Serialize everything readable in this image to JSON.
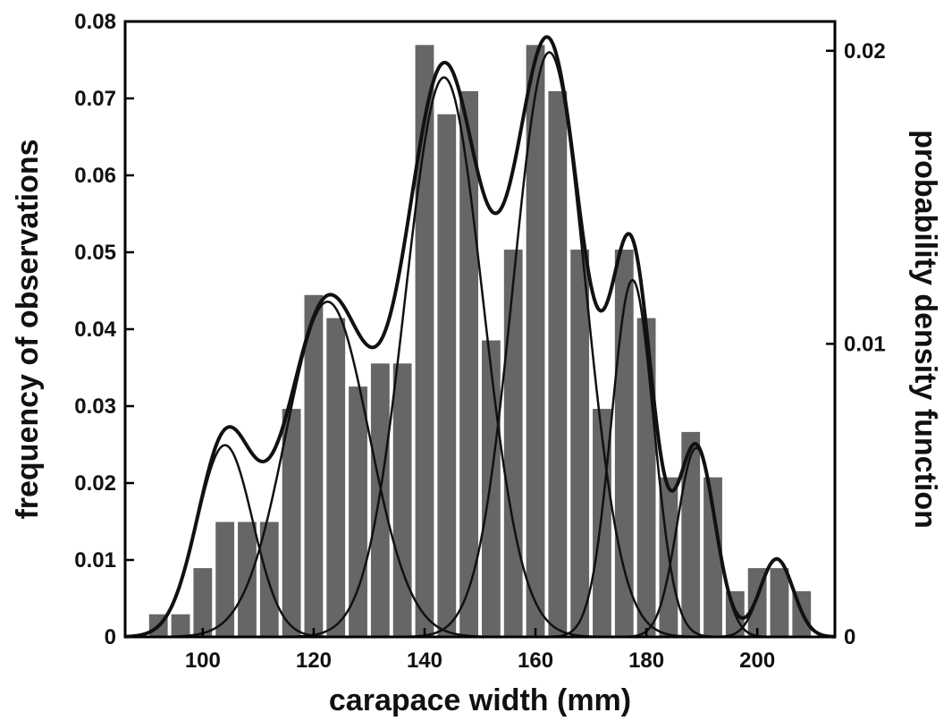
{
  "chart_data": {
    "type": "bar",
    "xlabel": "carapace width (mm)",
    "ylabel": "frequency of observations",
    "ylabel_right": "probability density function",
    "xlim": [
      86,
      214
    ],
    "ylim": [
      0,
      0.08
    ],
    "ylim_right": [
      0,
      0.021
    ],
    "x_ticks": [
      100,
      120,
      140,
      160,
      180,
      200
    ],
    "y_ticks": [
      0,
      0.01,
      0.02,
      0.03,
      0.04,
      0.05,
      0.06,
      0.07,
      0.08
    ],
    "y_tick_labels": [
      "0",
      "0.01",
      "0.02",
      "0.03",
      "0.04",
      "0.05",
      "0.06",
      "0.07",
      "0.08"
    ],
    "y_right_ticks": [
      0,
      0.01,
      0.02
    ],
    "y_right_tick_labels": [
      "0",
      "0.01",
      "0.02"
    ],
    "grid": false,
    "bars": {
      "bin_width": 4,
      "centers": [
        92,
        96,
        100,
        104,
        108,
        112,
        116,
        120,
        124,
        128,
        132,
        136,
        140,
        144,
        148,
        152,
        156,
        160,
        164,
        168,
        172,
        176,
        180,
        184,
        188,
        192,
        196,
        200,
        204,
        208
      ],
      "values": [
        0.003,
        0.003,
        0.009,
        0.015,
        0.015,
        0.015,
        0.0297,
        0.0445,
        0.0415,
        0.0326,
        0.0356,
        0.0356,
        0.077,
        0.068,
        0.071,
        0.0386,
        0.0504,
        0.077,
        0.071,
        0.0504,
        0.0297,
        0.0504,
        0.0415,
        0.0208,
        0.0267,
        0.0208,
        0.006,
        0.009,
        0.009,
        0.006
      ]
    },
    "mixture_components": [
      {
        "mean": 104,
        "sd": 5.0,
        "weight": 0.082
      },
      {
        "mean": 122.5,
        "sd": 7.5,
        "weight": 0.215
      },
      {
        "mean": 143.5,
        "sd": 7.0,
        "weight": 0.335
      },
      {
        "mean": 162.5,
        "sd": 6.5,
        "weight": 0.325
      },
      {
        "mean": 177.5,
        "sd": 3.8,
        "weight": 0.116
      },
      {
        "mean": 189,
        "sd": 3.4,
        "weight": 0.055
      },
      {
        "mean": 203.5,
        "sd": 3.0,
        "weight": 0.02
      }
    ]
  }
}
